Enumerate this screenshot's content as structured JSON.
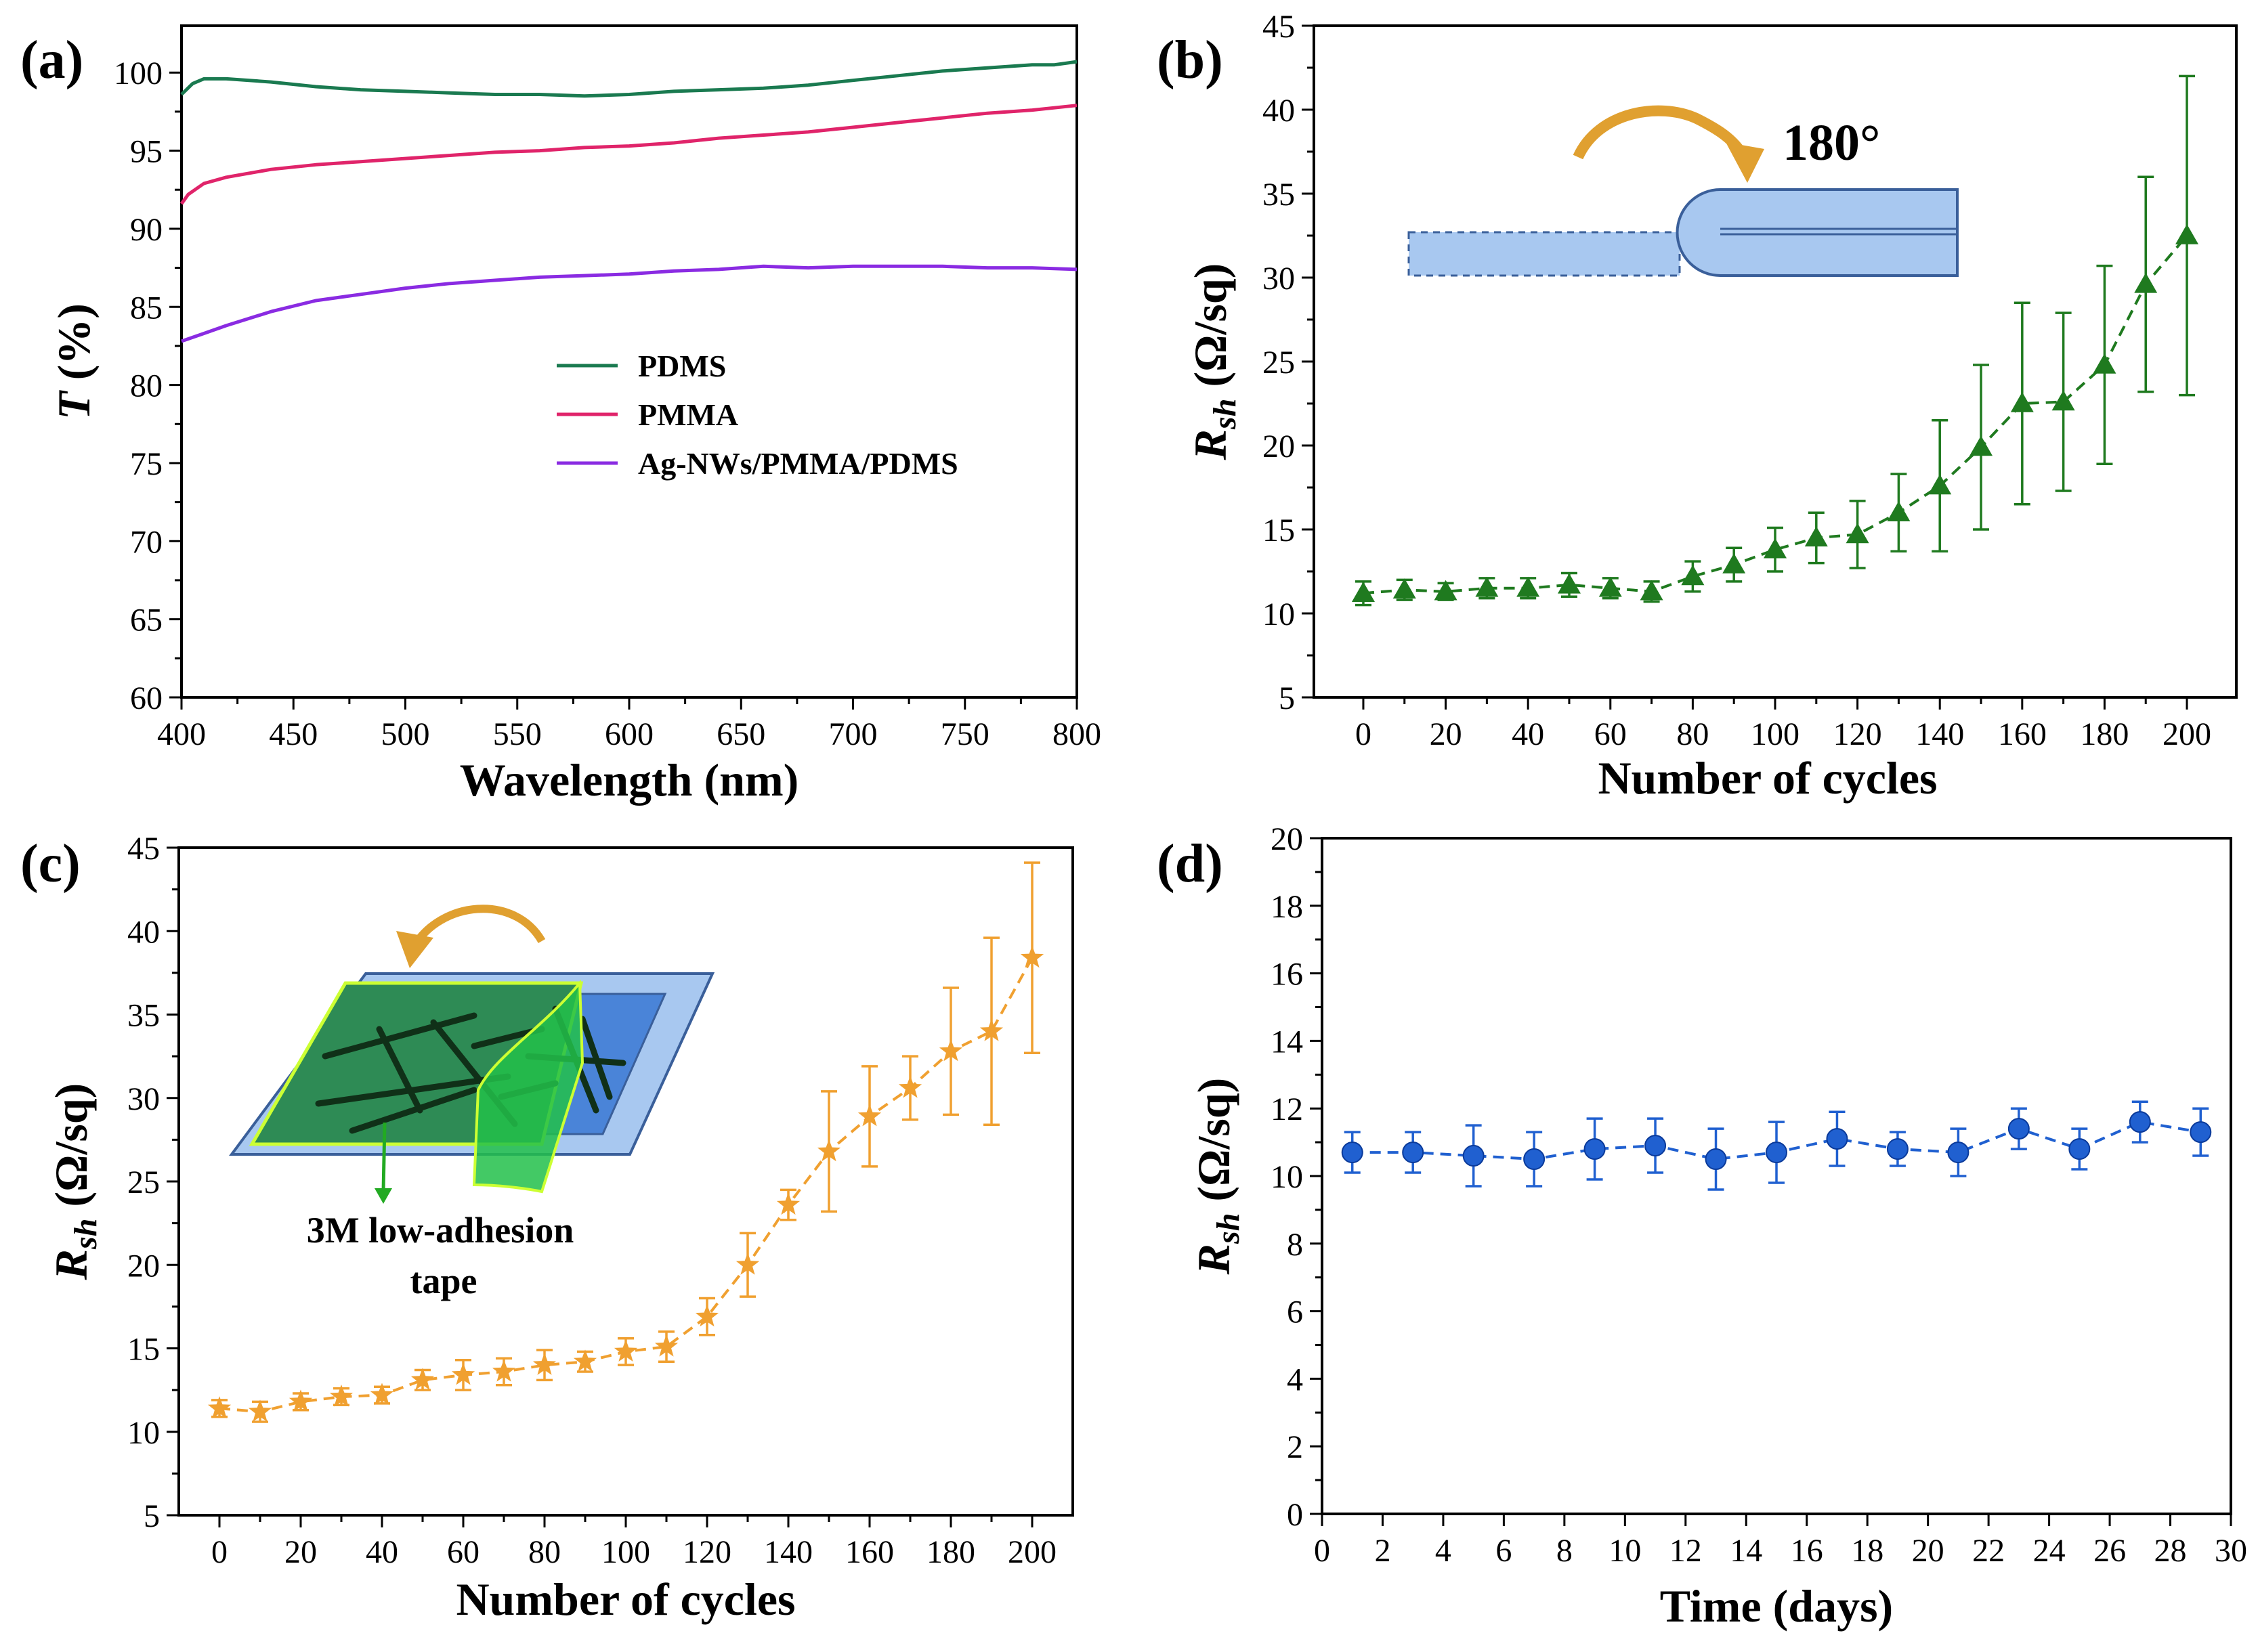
{
  "figure": {
    "panels": [
      {
        "id": "a",
        "label": "(a)"
      },
      {
        "id": "b",
        "label": "(b)"
      },
      {
        "id": "c",
        "label": "(c)"
      },
      {
        "id": "d",
        "label": "(d)"
      }
    ]
  },
  "chart_data": [
    {
      "id": "a",
      "type": "line",
      "label": "(a)",
      "xlabel": "Wavelength (nm)",
      "ylabel_italic": "T",
      "ylabel_rest": " (%)",
      "xlim": [
        400,
        800
      ],
      "ylim": [
        60,
        103
      ],
      "xticks": [
        400,
        450,
        500,
        550,
        600,
        650,
        700,
        750,
        800
      ],
      "yticks": [
        60,
        65,
        70,
        75,
        80,
        85,
        90,
        95,
        100
      ],
      "legend_position": "middle-right",
      "series": [
        {
          "name": "PDMS",
          "color": "#1a7a50",
          "x": [
            400,
            405,
            410,
            420,
            440,
            460,
            480,
            500,
            520,
            540,
            560,
            580,
            600,
            620,
            640,
            660,
            680,
            700,
            720,
            740,
            760,
            780,
            790,
            800
          ],
          "y": [
            98.6,
            99.3,
            99.6,
            99.6,
            99.4,
            99.1,
            98.9,
            98.8,
            98.7,
            98.6,
            98.6,
            98.5,
            98.6,
            98.8,
            98.9,
            99.0,
            99.2,
            99.5,
            99.8,
            100.1,
            100.3,
            100.5,
            100.5,
            100.7
          ]
        },
        {
          "name": "PMMA",
          "color": "#e0246a",
          "x": [
            400,
            403,
            410,
            420,
            440,
            460,
            480,
            500,
            520,
            540,
            560,
            580,
            600,
            620,
            640,
            660,
            680,
            700,
            720,
            740,
            760,
            780,
            800
          ],
          "y": [
            91.6,
            92.2,
            92.9,
            93.3,
            93.8,
            94.1,
            94.3,
            94.5,
            94.7,
            94.9,
            95.0,
            95.2,
            95.3,
            95.5,
            95.8,
            96.0,
            96.2,
            96.5,
            96.8,
            97.1,
            97.4,
            97.6,
            97.9
          ]
        },
        {
          "name": "Ag-NWs/PMMA/PDMS",
          "color": "#8a2be2",
          "x": [
            400,
            410,
            420,
            440,
            460,
            480,
            500,
            520,
            540,
            560,
            580,
            600,
            620,
            640,
            660,
            680,
            700,
            720,
            740,
            760,
            780,
            800
          ],
          "y": [
            82.8,
            83.3,
            83.8,
            84.7,
            85.4,
            85.8,
            86.2,
            86.5,
            86.7,
            86.9,
            87.0,
            87.1,
            87.3,
            87.4,
            87.6,
            87.5,
            87.6,
            87.6,
            87.6,
            87.5,
            87.5,
            87.4
          ]
        }
      ]
    },
    {
      "id": "b",
      "type": "line",
      "label": "(b)",
      "xlabel": "Number of cycles",
      "ylabel_italic": "R",
      "ylabel_sub": "sh",
      "ylabel_rest": " (Ω/sq)",
      "xlim": [
        -12,
        212
      ],
      "ylim": [
        5,
        45
      ],
      "xticks": [
        0,
        20,
        40,
        60,
        80,
        100,
        120,
        140,
        160,
        180,
        200
      ],
      "yticks": [
        5,
        10,
        15,
        20,
        25,
        30,
        35,
        40,
        45
      ],
      "marker": "triangle",
      "color": "#1f7a1f",
      "inset_annotation": "180°",
      "series": [
        {
          "name": "Rsh",
          "x": [
            0,
            10,
            20,
            30,
            40,
            50,
            60,
            70,
            80,
            90,
            100,
            110,
            120,
            130,
            140,
            150,
            160,
            170,
            180,
            190,
            200
          ],
          "y": [
            11.2,
            11.4,
            11.3,
            11.5,
            11.5,
            11.7,
            11.5,
            11.3,
            12.2,
            12.9,
            13.8,
            14.5,
            14.7,
            16.0,
            17.6,
            19.9,
            22.5,
            22.6,
            24.8,
            29.6,
            32.5
          ],
          "err": [
            0.7,
            0.6,
            0.5,
            0.6,
            0.6,
            0.7,
            0.6,
            0.6,
            0.9,
            1.0,
            1.3,
            1.5,
            2.0,
            2.3,
            3.9,
            4.9,
            6.0,
            5.3,
            5.9,
            6.4,
            9.5
          ]
        }
      ]
    },
    {
      "id": "c",
      "type": "line",
      "label": "(c)",
      "xlabel": "Number of cycles",
      "ylabel_italic": "R",
      "ylabel_sub": "sh",
      "ylabel_rest": " (Ω/sq)",
      "xlim": [
        -10,
        210
      ],
      "ylim": [
        5,
        45
      ],
      "xticks": [
        0,
        20,
        40,
        60,
        80,
        100,
        120,
        140,
        160,
        180,
        200
      ],
      "yticks": [
        5,
        10,
        15,
        20,
        25,
        30,
        35,
        40,
        45
      ],
      "marker": "star",
      "color": "#f0a030",
      "inset_annotation_line1": "3M low-adhesion",
      "inset_annotation_line2": "tape",
      "series": [
        {
          "name": "Rsh",
          "x": [
            0,
            10,
            20,
            30,
            40,
            50,
            60,
            70,
            80,
            90,
            100,
            110,
            120,
            130,
            140,
            150,
            160,
            170,
            180,
            190,
            200
          ],
          "y": [
            11.4,
            11.2,
            11.8,
            12.1,
            12.2,
            13.1,
            13.4,
            13.6,
            14.0,
            14.2,
            14.8,
            15.1,
            16.9,
            20.0,
            23.6,
            26.8,
            28.9,
            30.6,
            32.8,
            34.0,
            38.4
          ],
          "err": [
            0.5,
            0.6,
            0.5,
            0.5,
            0.5,
            0.6,
            0.9,
            0.8,
            0.9,
            0.6,
            0.8,
            0.9,
            1.1,
            1.9,
            0.9,
            3.6,
            3.0,
            1.9,
            3.8,
            5.6,
            5.7
          ]
        }
      ]
    },
    {
      "id": "d",
      "type": "line",
      "label": "(d)",
      "xlabel": "Time (days)",
      "ylabel_italic": "R",
      "ylabel_sub": "sh",
      "ylabel_rest": " (Ω/sq)",
      "xlim": [
        0,
        30
      ],
      "ylim": [
        0,
        20
      ],
      "xticks": [
        0,
        2,
        4,
        6,
        8,
        10,
        12,
        14,
        16,
        18,
        20,
        22,
        24,
        26,
        28,
        30
      ],
      "yticks": [
        0,
        2,
        4,
        6,
        8,
        10,
        12,
        14,
        16,
        18,
        20
      ],
      "marker": "circle",
      "color": "#2060d0",
      "series": [
        {
          "name": "Rsh",
          "x": [
            1,
            3,
            5,
            7,
            9,
            11,
            13,
            15,
            17,
            19,
            21,
            23,
            25,
            27,
            29
          ],
          "y": [
            10.7,
            10.7,
            10.6,
            10.5,
            10.8,
            10.9,
            10.5,
            10.7,
            11.1,
            10.8,
            10.7,
            11.4,
            10.8,
            11.6,
            11.3
          ],
          "err": [
            0.6,
            0.6,
            0.9,
            0.8,
            0.9,
            0.8,
            0.9,
            0.9,
            0.8,
            0.5,
            0.7,
            0.6,
            0.6,
            0.6,
            0.7
          ]
        }
      ]
    }
  ]
}
